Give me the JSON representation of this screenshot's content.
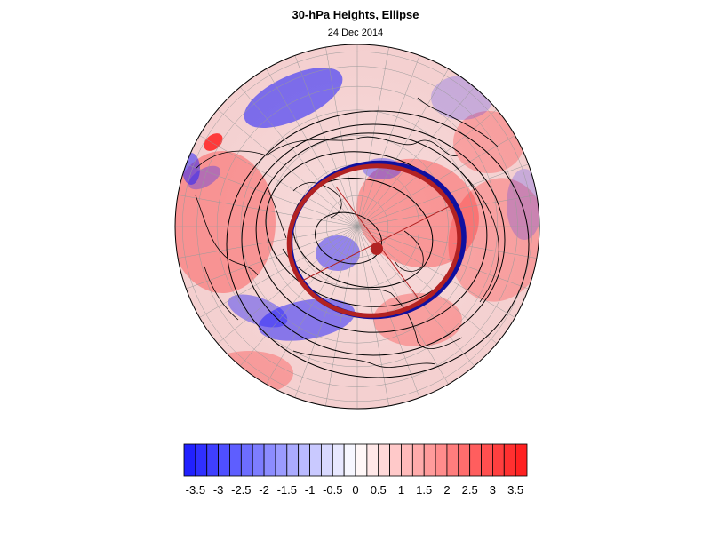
{
  "header": {
    "title": "30-hPa Heights, Ellipse",
    "date": "24 Dec 2014"
  },
  "colors": {
    "positive": "#ff2020",
    "negative": "#1a1aff",
    "ellipse_fill_edge": "#1010a0",
    "ellipse_outline": "#b22222",
    "centroid": "#b22222",
    "contour": "#000000",
    "coastline": "#000000",
    "grid": "#9a9a9a"
  },
  "map": {
    "projection": "north polar orthographic",
    "field": "30-hPa height anomaly",
    "vortex_ellipse": "present",
    "centroid_marker": "filled circle"
  },
  "colorbar": {
    "levels": [
      -3.75,
      -3.5,
      -3.25,
      -3,
      -2.75,
      -2.5,
      -2.25,
      -2,
      -1.75,
      -1.5,
      -1.25,
      -1,
      -0.75,
      -0.5,
      -0.25,
      0,
      0.25,
      0.5,
      0.75,
      1,
      1.25,
      1.5,
      1.75,
      2,
      2.25,
      2.5,
      2.75,
      3,
      3.25,
      3.5,
      3.75
    ],
    "tick_labels": [
      "-3.5",
      "-3",
      "-2.5",
      "-2",
      "-1.5",
      "-1",
      "-0.5",
      "0",
      "0.5",
      "1",
      "1.5",
      "2",
      "2.5",
      "3",
      "3.5"
    ]
  }
}
